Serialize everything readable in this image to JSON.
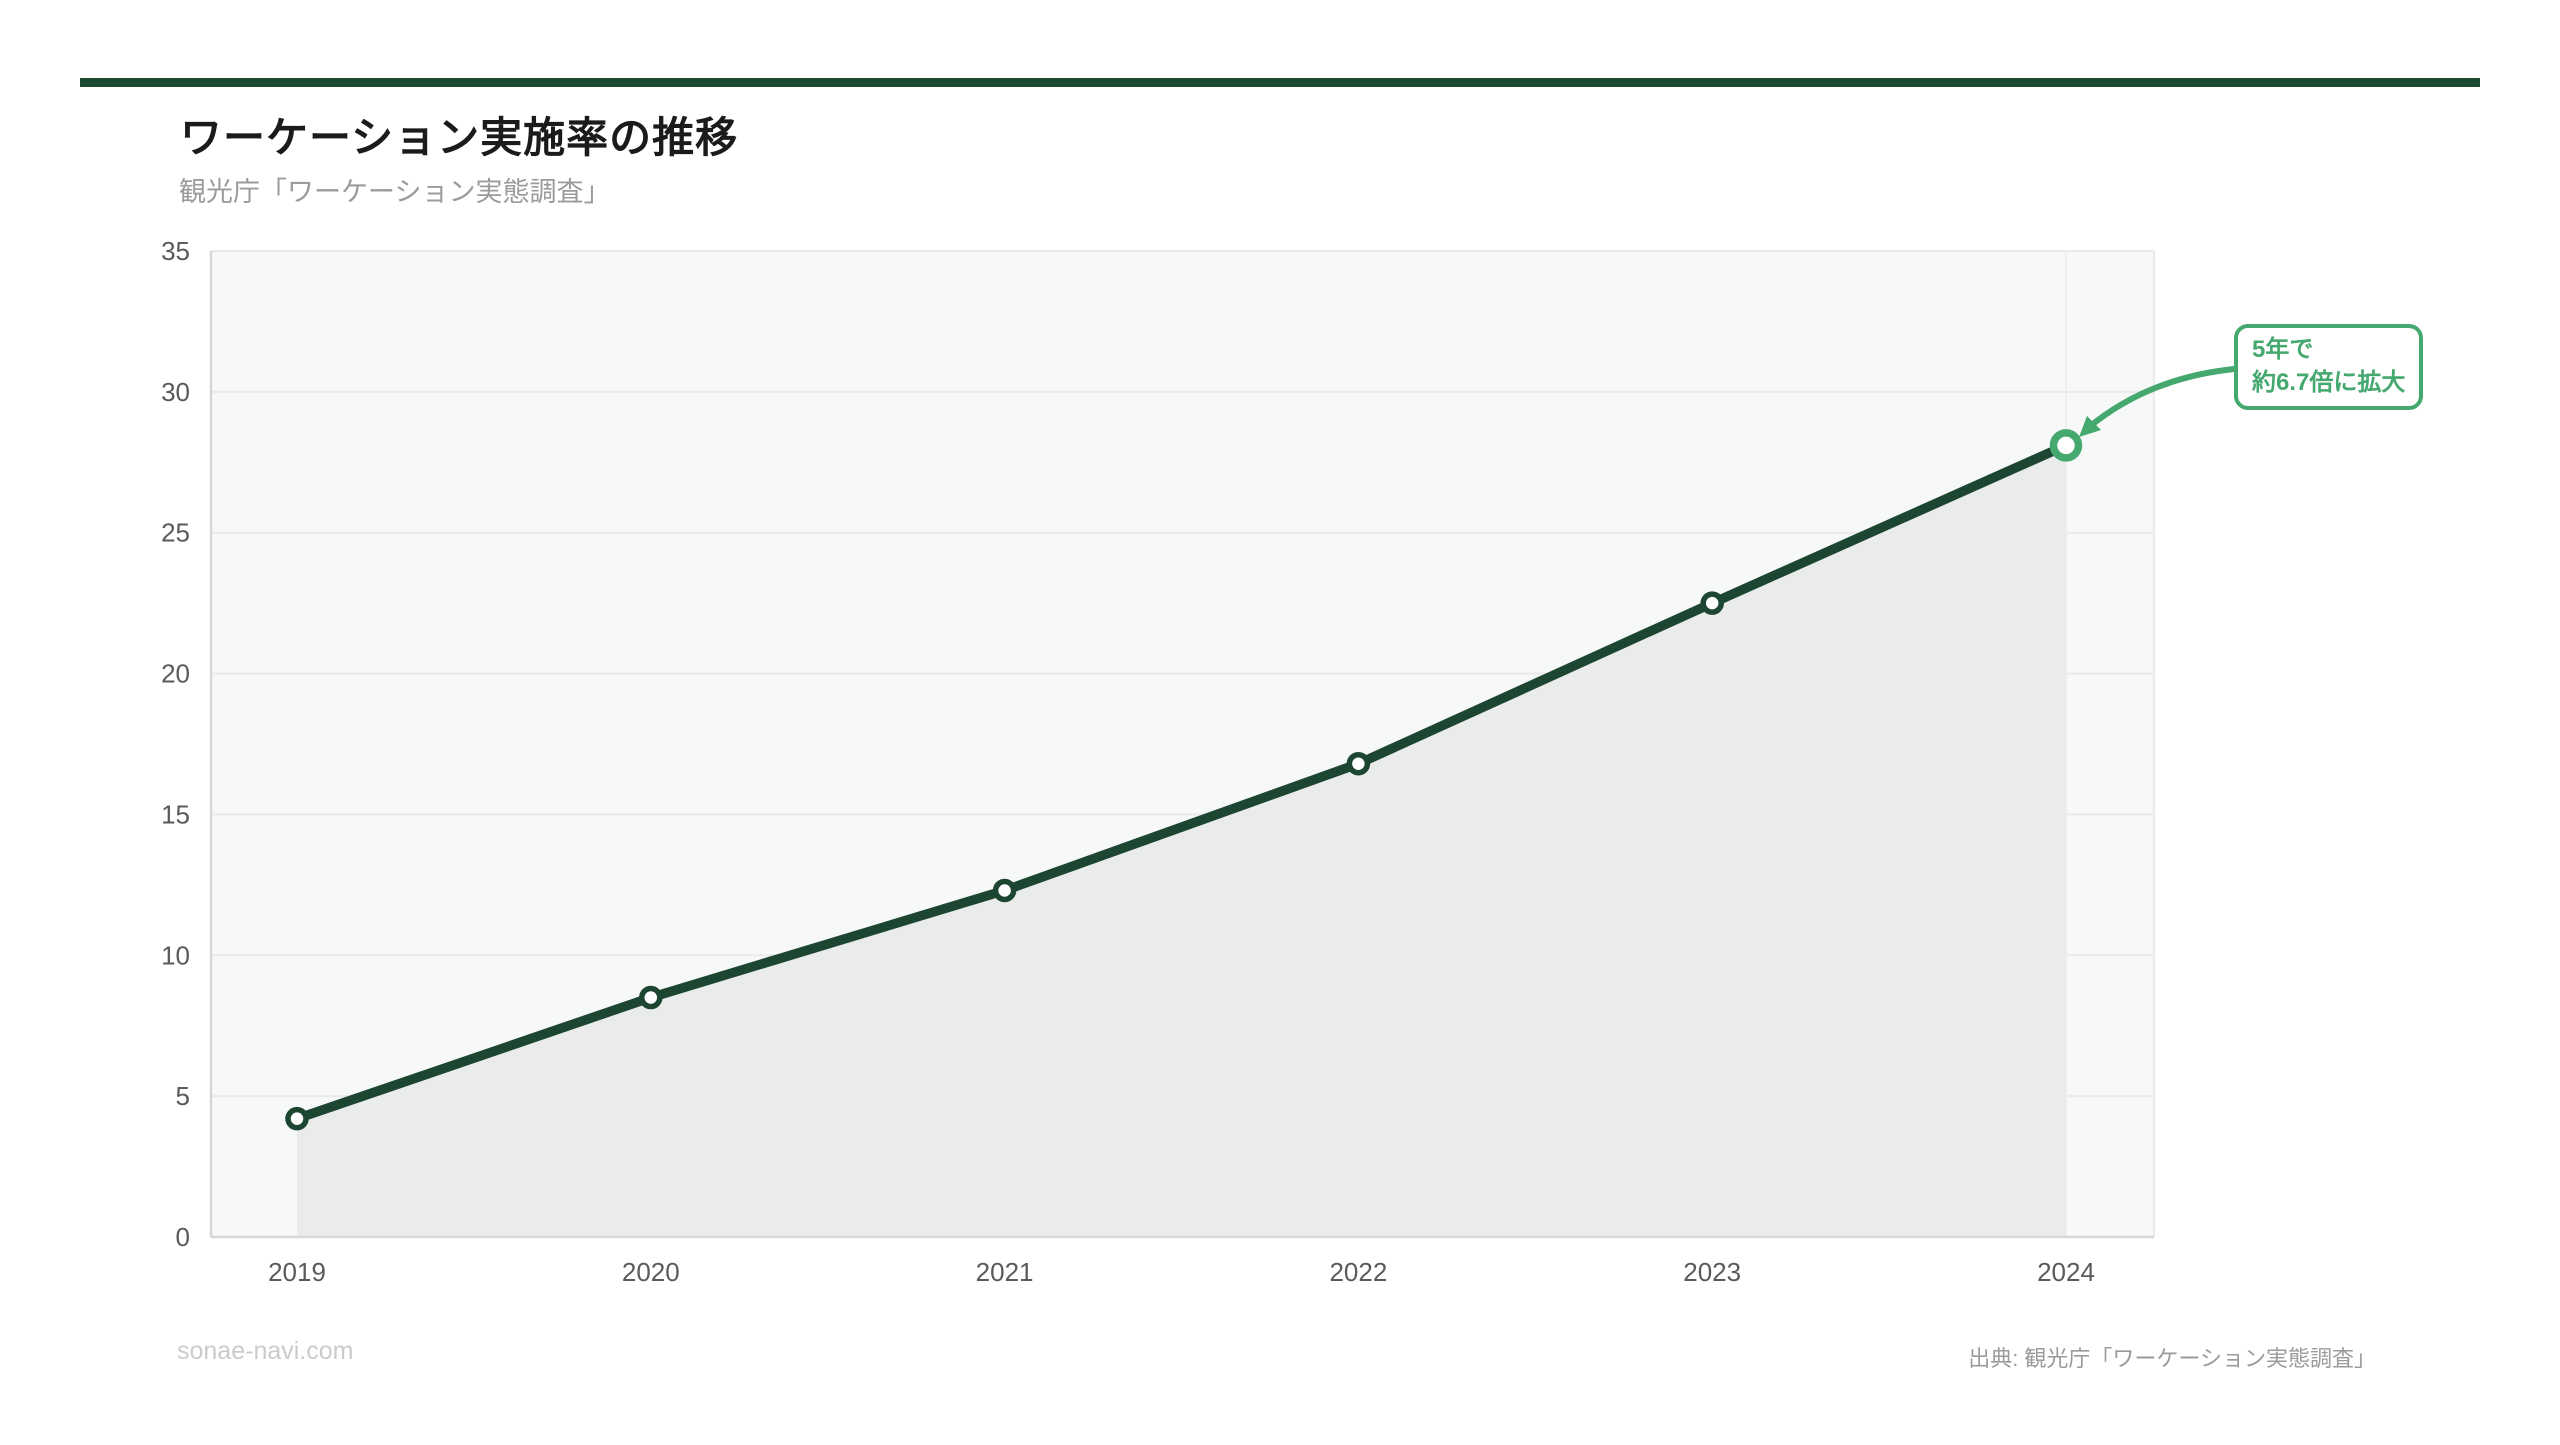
{
  "header": {
    "title": "ワーケーション実施率の推移",
    "subtitle": "観光庁「ワーケーション実態調査」"
  },
  "annotation": {
    "line1": "5年で",
    "line2": "約6.7倍に拡大"
  },
  "footer": {
    "left": "sonae-navi.com",
    "right": "出典: 観光庁「ワーケーション実態調査」"
  },
  "colors": {
    "topbar_green": "#1d4b31",
    "line_green": "#1d4632",
    "accent_green": "#45a86e",
    "area_fill": "#eaebeb",
    "plot_bg": "#f7f8f8",
    "grid": "#eaeaea",
    "axis": "#d7d7d7",
    "faint_grid": "#efefef",
    "tick_text": "#5a5a5a",
    "marker_fill": "#ffffff"
  },
  "chart_data": {
    "type": "line",
    "title": "ワーケーション実施率の推移",
    "subtitle": "観光庁「ワーケーション実態調査」",
    "categories": [
      "2019",
      "2020",
      "2021",
      "2022",
      "2023",
      "2024"
    ],
    "series": [
      {
        "name": "ワーケーション実施率",
        "values": [
          4.2,
          8.5,
          12.3,
          16.8,
          22.5,
          28.1
        ]
      }
    ],
    "ylim": [
      0,
      35
    ],
    "yticks": [
      0,
      5,
      10,
      15,
      20,
      25,
      30,
      35
    ],
    "grid": "horizontal",
    "area": true,
    "legend": "none",
    "annotation": "5年で約6.7倍に拡大",
    "highlight_last_point": true,
    "source": "出典: 観光庁「ワーケーション実態調査」"
  }
}
